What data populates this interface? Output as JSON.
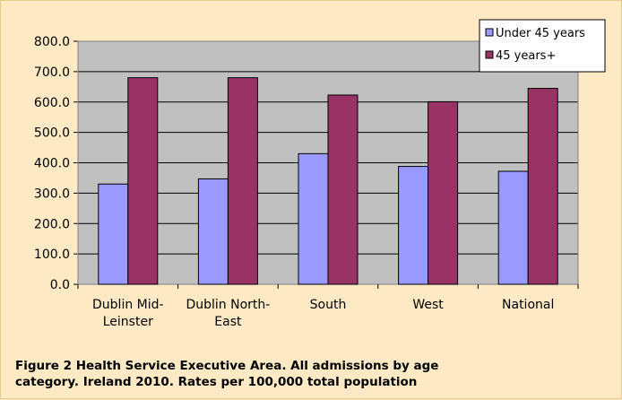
{
  "chart_data": {
    "type": "bar",
    "categories": [
      [
        "Dublin Mid-",
        "Leinster"
      ],
      [
        "Dublin North-",
        "East"
      ],
      [
        "South"
      ],
      [
        "West"
      ],
      [
        "National"
      ]
    ],
    "series": [
      {
        "name": "Under 45 years",
        "color": "#9999ff",
        "values": [
          330,
          347,
          430,
          388,
          372
        ]
      },
      {
        "name": "45 years+",
        "color": "#993366",
        "values": [
          680,
          680,
          623,
          601,
          645
        ]
      }
    ],
    "ylim": [
      0,
      800
    ],
    "yticks": [
      "0.0",
      "100.0",
      "200.0",
      "300.0",
      "400.0",
      "500.0",
      "600.0",
      "700.0",
      "800.0"
    ],
    "grid": true,
    "legend_position": "top-right",
    "plot_background": "#c0c0c0",
    "caption": [
      "Figure 2   Health Service Executive Area. All admissions by age",
      "category. Ireland 2010. Rates per 100,000 total population"
    ]
  }
}
